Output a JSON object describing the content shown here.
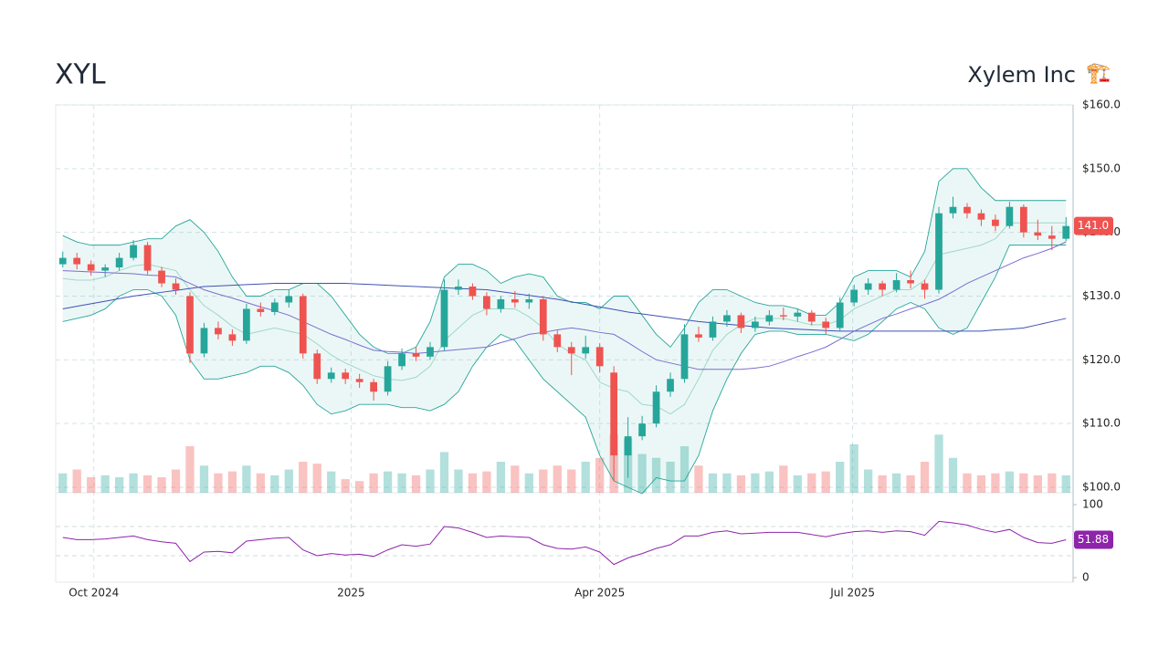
{
  "header": {
    "ticker": "XYL",
    "company": "Xylem Inc",
    "icon": "🏗️"
  },
  "chart_data": {
    "type": "candlestick",
    "color_up": "#26a69a",
    "color_down": "#ef5350",
    "open": [
      135,
      136,
      135,
      134,
      134.5,
      136,
      138,
      134,
      132,
      130,
      121,
      125,
      124,
      123,
      128,
      127.5,
      129,
      130,
      121,
      117,
      118,
      117,
      116.5,
      115,
      119,
      121,
      120.5,
      122,
      131,
      131.5,
      130,
      128,
      129.5,
      129,
      129.5,
      124,
      122,
      121,
      122,
      118,
      105,
      108,
      110,
      115,
      117,
      124,
      123.5,
      126,
      127,
      125,
      126,
      127,
      126.8,
      127.4,
      126,
      125,
      129,
      131,
      132,
      131,
      132.5,
      132,
      131,
      143,
      144,
      143,
      142,
      141,
      144,
      140,
      139.5,
      139
    ],
    "high": [
      137,
      136.8,
      135.6,
      135,
      136.8,
      138.8,
      138.5,
      134.6,
      132.8,
      130.6,
      125.8,
      126,
      124.8,
      128.8,
      129,
      129.6,
      131,
      130.4,
      121.6,
      118.8,
      118.6,
      117.8,
      117,
      119.8,
      121.8,
      122,
      122.8,
      132.6,
      132.6,
      132,
      130.6,
      130,
      130.8,
      130.4,
      130,
      124.6,
      122.8,
      123.8,
      122.6,
      119,
      111,
      111.2,
      116,
      118,
      125.6,
      125.2,
      126.8,
      127.8,
      127.4,
      126.8,
      127.8,
      128.2,
      128,
      127.8,
      126.6,
      129.8,
      131.8,
      132.8,
      132.4,
      133.6,
      134,
      132.6,
      144,
      145.6,
      144.6,
      143.6,
      142.8,
      144.8,
      144.4,
      142,
      141,
      142.4
    ],
    "low": [
      134.5,
      134.2,
      133.2,
      133,
      134,
      135.6,
      133.4,
      131.4,
      130.2,
      119.5,
      120.4,
      123.2,
      122.2,
      122.5,
      126.8,
      127,
      128.2,
      120.2,
      116.2,
      116.4,
      116.2,
      115.6,
      113.6,
      114.4,
      118.4,
      119.8,
      120,
      121.4,
      130.2,
      129.4,
      127,
      127.4,
      128.2,
      128,
      123,
      121.2,
      117.6,
      120.2,
      118,
      101,
      101.5,
      107.4,
      109.4,
      114.2,
      116.4,
      122.8,
      123,
      125.2,
      124.2,
      124.4,
      125.4,
      126.2,
      126,
      125.4,
      124,
      124.6,
      128.4,
      130.2,
      130,
      130.6,
      131.2,
      129.6,
      130.4,
      142.2,
      142.2,
      141,
      140.2,
      140.6,
      139.2,
      138.8,
      137.2,
      138.6
    ],
    "close": [
      136,
      135,
      134,
      134.5,
      136,
      138,
      134,
      132,
      131,
      121,
      125,
      124,
      123,
      128,
      127.5,
      129,
      130,
      121,
      117,
      118,
      117,
      116.5,
      115,
      119,
      121,
      120.5,
      122,
      131,
      131.5,
      130,
      128,
      129.5,
      129,
      129.5,
      124,
      122,
      121,
      122,
      119,
      105,
      108,
      110,
      115,
      117,
      124,
      123.5,
      126,
      127,
      125,
      126,
      127,
      126.8,
      127.4,
      126,
      125,
      129,
      131,
      132,
      131,
      132.5,
      132,
      131,
      143,
      144,
      143,
      142,
      141,
      144,
      140,
      139.5,
      139,
      141
    ],
    "last_close_label": "141.0",
    "volume": [
      0.5,
      0.6,
      0.4,
      0.45,
      0.4,
      0.5,
      0.45,
      0.4,
      0.6,
      1.2,
      0.7,
      0.5,
      0.55,
      0.7,
      0.5,
      0.45,
      0.6,
      0.8,
      0.75,
      0.55,
      0.35,
      0.3,
      0.5,
      0.55,
      0.5,
      0.45,
      0.6,
      1.05,
      0.6,
      0.5,
      0.55,
      0.8,
      0.7,
      0.5,
      0.6,
      0.7,
      0.6,
      0.8,
      0.9,
      1.5,
      1.4,
      1.0,
      0.9,
      0.8,
      1.2,
      0.7,
      0.5,
      0.5,
      0.45,
      0.5,
      0.55,
      0.7,
      0.45,
      0.5,
      0.55,
      0.8,
      1.25,
      0.6,
      0.45,
      0.5,
      0.45,
      0.8,
      1.5,
      0.9,
      0.5,
      0.45,
      0.5,
      0.55,
      0.5,
      0.45,
      0.5,
      0.45
    ],
    "volume_ylim": [
      0,
      10
    ],
    "bollinger_upper": [
      139.5,
      138.5,
      138,
      138,
      138,
      138.5,
      139,
      139,
      141,
      142,
      140,
      137,
      133,
      130,
      130,
      131,
      131,
      132,
      132,
      130,
      127,
      124,
      122,
      121,
      121,
      122,
      126,
      133,
      135,
      135,
      134,
      132,
      133,
      133.5,
      133,
      130,
      129,
      129,
      128,
      130,
      130,
      127,
      124,
      122,
      125,
      129,
      131,
      131,
      130,
      129,
      128.5,
      128.5,
      128,
      127,
      127,
      129,
      133,
      134,
      134,
      134,
      133,
      137,
      148,
      150,
      150,
      147,
      145,
      145,
      145,
      145,
      145,
      145
    ],
    "bollinger_middle": [
      132.75,
      132.5,
      132.5,
      133,
      134,
      134.75,
      135,
      134.5,
      134,
      131,
      128.5,
      127,
      125.25,
      124,
      124.5,
      125,
      124.5,
      124,
      122.5,
      120.75,
      119.5,
      118.5,
      117.5,
      117,
      116.75,
      117.25,
      119,
      123,
      125,
      127,
      128,
      128,
      128,
      126.75,
      125,
      122.5,
      121,
      120,
      116.5,
      115.5,
      115,
      113,
      112.75,
      111.5,
      113,
      117,
      121.5,
      124,
      125.5,
      126.5,
      126.5,
      126.5,
      126,
      125.5,
      125.5,
      126.25,
      128,
      129,
      130,
      131,
      131,
      132.5,
      136.5,
      137,
      137.5,
      138,
      139,
      141.5,
      141.5,
      141.5,
      141.5,
      141.5
    ],
    "bollinger_lower": [
      126,
      126.5,
      127,
      128,
      130,
      131,
      131,
      130,
      127,
      120,
      117,
      117,
      117.5,
      118,
      119,
      119,
      118,
      116,
      113,
      111.5,
      112,
      113,
      113,
      113,
      112.5,
      112.5,
      112,
      113,
      115,
      119,
      122,
      124,
      123,
      120,
      117,
      115,
      113,
      111,
      105,
      101,
      100,
      99,
      101.5,
      101,
      101,
      105,
      112,
      117,
      121,
      124,
      124.5,
      124.5,
      124,
      124,
      124,
      123.5,
      123,
      124,
      126,
      128,
      129,
      128,
      125,
      124,
      125,
      129,
      133,
      138,
      138,
      138,
      138,
      138
    ],
    "band_color": "#26a69a",
    "middle_color": "#9fd8c8",
    "sma_50": [
      134,
      133.9,
      133.8,
      133.7,
      133.6,
      133.5,
      133.3,
      133.2,
      133,
      132,
      131,
      130.3,
      129.7,
      129,
      128.3,
      127.7,
      127,
      126,
      125,
      124,
      123.2,
      122.3,
      121.5,
      121.3,
      121.2,
      121,
      121.2,
      121.4,
      121.6,
      121.8,
      122,
      122.7,
      123.3,
      124,
      124.3,
      124.7,
      125,
      124.7,
      124.3,
      124,
      122.7,
      121.3,
      120,
      119.5,
      119,
      118.5,
      118.5,
      118.5,
      118.5,
      118.7,
      119,
      119.7,
      120.5,
      121.2,
      122,
      123.2,
      124.5,
      125.5,
      126.5,
      127.2,
      128,
      128.7,
      129.5,
      130.7,
      132,
      133,
      134,
      135,
      136,
      136.7,
      137.5,
      138.5
    ],
    "sma_50_color": "#7a6fd0",
    "sma_200": [
      128,
      128.4,
      128.8,
      129.2,
      129.6,
      130,
      130.3,
      130.6,
      130.9,
      131.2,
      131.5,
      131.6,
      131.7,
      131.8,
      131.9,
      132,
      132,
      132,
      132,
      132,
      132,
      131.9,
      131.8,
      131.7,
      131.6,
      131.5,
      131.4,
      131.3,
      131.2,
      131.1,
      131,
      130.7,
      130.4,
      130.1,
      129.8,
      129.5,
      129.1,
      128.7,
      128.3,
      127.9,
      127.5,
      127.2,
      126.9,
      126.6,
      126.3,
      126,
      125.8,
      125.6,
      125.4,
      125.2,
      125,
      124.9,
      124.8,
      124.7,
      124.6,
      124.5,
      124.5,
      124.5,
      124.5,
      124.5,
      124.5,
      124.5,
      124.5,
      124.5,
      124.5,
      124.5,
      124.7,
      124.8,
      125,
      125.5,
      126,
      126.5
    ],
    "sma_200_color": "#3f51b5",
    "ylim": [
      100,
      160
    ],
    "yticks": [
      {
        "value": 100,
        "label": "$100.0"
      },
      {
        "value": 110,
        "label": "$110.0"
      },
      {
        "value": 120,
        "label": "$120.0"
      },
      {
        "value": 130,
        "label": "$130.0"
      },
      {
        "value": 140,
        "label": "$140.0"
      },
      {
        "value": 150,
        "label": "$150.0"
      },
      {
        "value": 160,
        "label": "$160.0"
      }
    ],
    "xlim": [
      -0.5,
      71.5
    ],
    "xticks": [
      {
        "value": 2.2,
        "label": "Oct 2024"
      },
      {
        "value": 20.4,
        "label": "2025"
      },
      {
        "value": 38,
        "label": "Apr 2025"
      },
      {
        "value": 55.9,
        "label": "Jul 2025"
      }
    ],
    "grid": true,
    "rsi": {
      "values": [
        55,
        52,
        52,
        53,
        55,
        57,
        52,
        49,
        47,
        22,
        35,
        36,
        34,
        50,
        52,
        54,
        55,
        38,
        30,
        33,
        31,
        32,
        29,
        38,
        45,
        43,
        46,
        70,
        68,
        62,
        55,
        57,
        56,
        55,
        45,
        40,
        39,
        42,
        35,
        18,
        27,
        33,
        40,
        45,
        57,
        57,
        62,
        64,
        60,
        61,
        62,
        62,
        62,
        59,
        56,
        60,
        63,
        64,
        62,
        64,
        63,
        58,
        77,
        75,
        72,
        66,
        62,
        66,
        55,
        48,
        47,
        51.88
      ],
      "value_label": "51.88",
      "color": "#8e24aa",
      "ylim": [
        0,
        100
      ],
      "yticks": [
        0,
        100
      ],
      "levels": [
        30,
        70
      ]
    }
  }
}
